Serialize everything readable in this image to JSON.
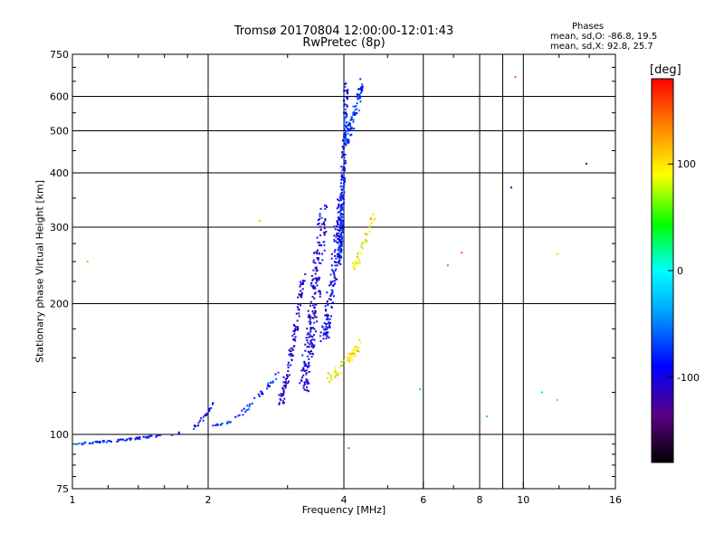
{
  "header": {
    "title_line1": "Tromsø 20170804 12:00:00-12:01:43",
    "title_line2": "RwPretec (8p)",
    "stats_heading": "Phases",
    "stats_o": "mean, sd,O: -86.8, 19.5",
    "stats_x": "mean, sd,X:  92.8, 25.7"
  },
  "chart_data": {
    "type": "scatter",
    "xlabel": "Frequency [MHz]",
    "ylabel": "Stationary phase Virtual Height [km]",
    "x_scale": "log",
    "y_scale": "log",
    "xlim": [
      1,
      16
    ],
    "ylim": [
      75,
      750
    ],
    "x_ticks": [
      1,
      2,
      4,
      6,
      8,
      10,
      16
    ],
    "y_ticks": [
      75,
      100,
      200,
      300,
      400,
      500,
      600,
      750
    ],
    "x_gridlines": [
      2,
      4,
      6,
      8,
      10
    ],
    "x_minor_gridlines": [
      9
    ],
    "y_gridlines": [
      100,
      200,
      300,
      400,
      500,
      600
    ],
    "grid": true,
    "colorbar": {
      "label": "[deg]",
      "min": -180,
      "max": 180,
      "ticks": [
        100,
        0,
        -100
      ],
      "colormap": [
        "#000000",
        "#5a0080",
        "#0000ff",
        "#00aaff",
        "#00ffff",
        "#00ff00",
        "#ffff00",
        "#ff8000",
        "#ff0000"
      ]
    },
    "traces": [
      {
        "f1": 1.0,
        "f2": 1.75,
        "h1": 95,
        "h2": 101,
        "phase": -85,
        "n": 70,
        "spread": 0.012
      },
      {
        "f1": 1.85,
        "f2": 2.05,
        "h1": 103,
        "h2": 118,
        "phase": -88,
        "n": 25,
        "spread": 0.02
      },
      {
        "f1": 2.05,
        "f2": 2.25,
        "h1": 105,
        "h2": 107,
        "phase": -80,
        "n": 15,
        "spread": 0.01
      },
      {
        "f1": 2.3,
        "f2": 2.9,
        "h1": 110,
        "h2": 140,
        "phase": -80,
        "n": 35,
        "spread": 0.03
      },
      {
        "f1": 2.9,
        "f2": 3.25,
        "h1": 120,
        "h2": 230,
        "phase": -105,
        "n": 110,
        "spread": 0.06
      },
      {
        "f1": 3.25,
        "f2": 3.6,
        "h1": 130,
        "h2": 330,
        "phase": -100,
        "n": 220,
        "spread": 0.12
      },
      {
        "f1": 3.6,
        "f2": 3.95,
        "h1": 165,
        "h2": 350,
        "phase": -95,
        "n": 170,
        "spread": 0.09
      },
      {
        "f1": 3.9,
        "f2": 4.05,
        "h1": 250,
        "h2": 650,
        "phase": -85,
        "n": 200,
        "spread": 0.05
      },
      {
        "f1": 4.0,
        "f2": 4.4,
        "h1": 470,
        "h2": 640,
        "phase": -80,
        "n": 90,
        "spread": 0.06
      },
      {
        "f1": 4.2,
        "f2": 4.65,
        "h1": 245,
        "h2": 320,
        "phase": 95,
        "n": 40,
        "spread": 0.06
      },
      {
        "f1": 3.7,
        "f2": 4.4,
        "h1": 135,
        "h2": 165,
        "phase": 100,
        "n": 55,
        "spread": 0.05
      }
    ],
    "isolated_points": [
      {
        "x": 1.08,
        "y": 250,
        "phase": 120
      },
      {
        "x": 2.6,
        "y": 310,
        "phase": 60
      },
      {
        "x": 4.1,
        "y": 93,
        "phase": 150
      },
      {
        "x": 5.9,
        "y": 127,
        "phase": -20
      },
      {
        "x": 6.8,
        "y": 245,
        "phase": -30
      },
      {
        "x": 7.3,
        "y": 262,
        "phase": 150
      },
      {
        "x": 8.3,
        "y": 110,
        "phase": -20
      },
      {
        "x": 9.4,
        "y": 370,
        "phase": -110
      },
      {
        "x": 9.6,
        "y": 665,
        "phase": 150
      },
      {
        "x": 11.0,
        "y": 125,
        "phase": -20
      },
      {
        "x": 11.9,
        "y": 260,
        "phase": 110
      },
      {
        "x": 11.9,
        "y": 120,
        "phase": 120
      },
      {
        "x": 13.8,
        "y": 420,
        "phase": -140
      }
    ]
  }
}
